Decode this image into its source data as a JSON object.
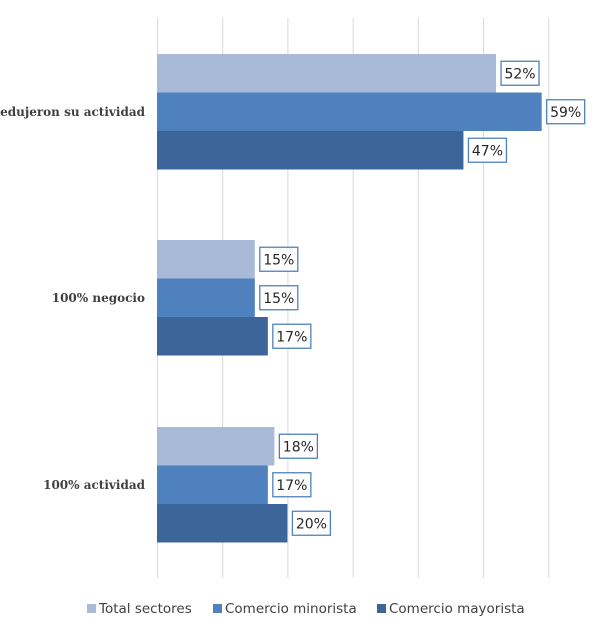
{
  "chart_data": {
    "type": "bar",
    "orientation": "horizontal",
    "title": "",
    "xlabel": "",
    "ylabel": "",
    "xlim": [
      0,
      60
    ],
    "grid": true,
    "legend_position": "bottom",
    "categories": [
      "Redujeron su actividad",
      "100%  negocio",
      "100% actividad"
    ],
    "series": [
      {
        "name": "Total sectores",
        "color": "#A9B9D8",
        "values": [
          52,
          15,
          18
        ],
        "labels": [
          "52%",
          "15%",
          "18%"
        ]
      },
      {
        "name": "Comercio minorista",
        "color": "#4E81BD",
        "values": [
          59,
          15,
          17
        ],
        "labels": [
          "59%",
          "15%",
          "17%"
        ]
      },
      {
        "name": "Comercio mayorista",
        "color": "#3C6699",
        "values": [
          47,
          17,
          20
        ],
        "labels": [
          "47%",
          "17%",
          "20%"
        ]
      }
    ]
  }
}
